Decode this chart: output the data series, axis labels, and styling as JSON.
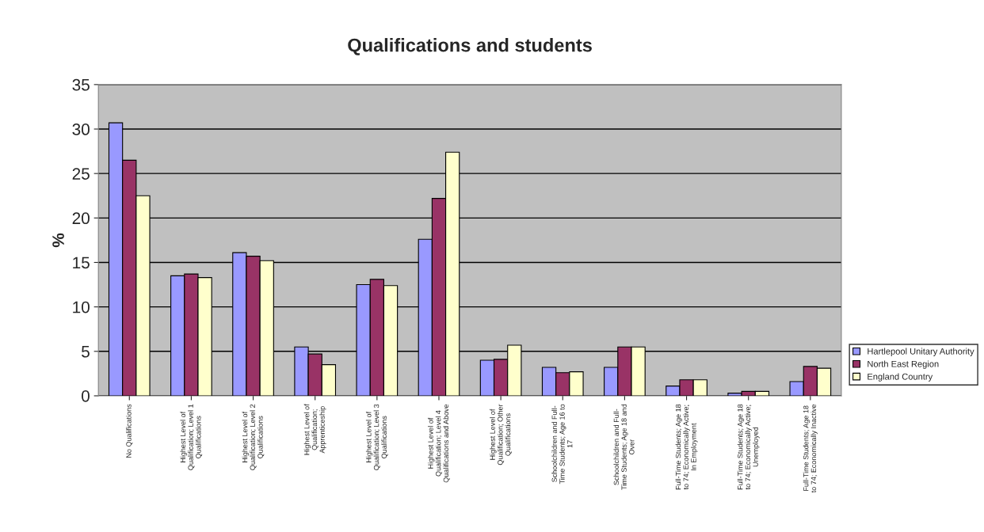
{
  "chart_data": {
    "type": "bar",
    "title": "Qualifications and students",
    "ylabel": "%",
    "categories": [
      "No Qualifications",
      "Highest Level of\nQualification; Level 1\nQualifications",
      "Highest Level of\nQualification; Level 2\nQualifications",
      "Highest Level of\nQualification;\nApprenticeship",
      "Highest Level of\nQualification; Level 3\nQualifications",
      "Highest Level of\nQualification; Level 4\nQualifications and Above",
      "Highest Level of\nQualification; Other\nQualifications",
      "Schoolchildren and Full-\nTime Students; Age 16 to\n17",
      "Schoolchildren and Full-\nTime Students; Age 18 and\nOver",
      "Full-Time Students; Age 18\nto 74; Economically Active;\nIn Employment",
      "Full-Time Students; Age 18\nto 74; Economically Active;\nUnemployed",
      "Full-Time Students; Age 18\nto 74; Economically Inactive"
    ],
    "series": [
      {
        "name": "Hartlepool Unitary Authority",
        "color": "#9999ff",
        "values": [
          30.7,
          13.5,
          16.1,
          5.5,
          12.5,
          17.6,
          4.0,
          3.2,
          3.2,
          1.1,
          0.3,
          1.6
        ]
      },
      {
        "name": "North East Region",
        "color": "#993366",
        "values": [
          26.5,
          13.7,
          15.7,
          4.7,
          13.1,
          22.2,
          4.1,
          2.6,
          5.5,
          1.8,
          0.5,
          3.3
        ]
      },
      {
        "name": "England Country",
        "color": "#ffffcc",
        "values": [
          22.5,
          13.3,
          15.2,
          3.5,
          12.4,
          27.4,
          5.7,
          2.7,
          5.5,
          1.8,
          0.5,
          3.1
        ]
      }
    ],
    "ylim": [
      0,
      35
    ],
    "yticks": [
      0,
      5,
      10,
      15,
      20,
      25,
      30,
      35
    ],
    "grid": "y",
    "legend": "right"
  }
}
